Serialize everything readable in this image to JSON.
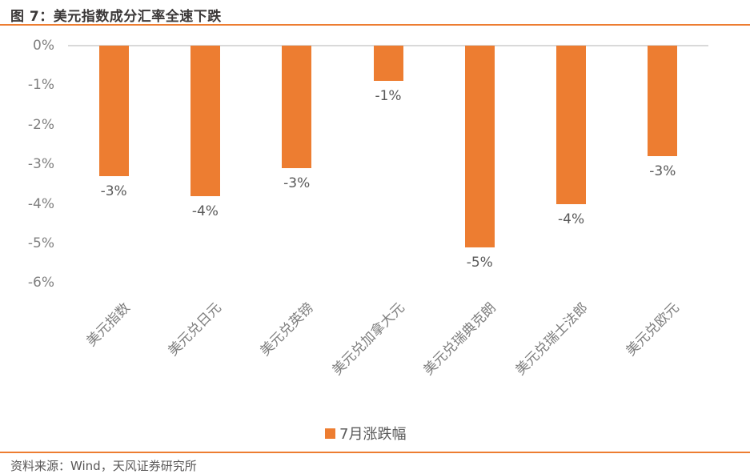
{
  "header": {
    "title": "图 7：美元指数成分汇率全速下跌"
  },
  "footer": {
    "source": "资料来源：Wind，天风证券研究所"
  },
  "colors": {
    "bar": "#ed7d31",
    "accent": "#ed7d31",
    "axis_line": "#d9d9d9",
    "tick_text": "#7f7f7f",
    "dlabel_text": "#595959",
    "title_text": "#3b3838",
    "source_text": "#595757"
  },
  "chart_data": {
    "type": "bar",
    "title": "图 7：美元指数成分汇率全速下跌",
    "categories": [
      "美元指数",
      "美元兑日元",
      "美元兑英镑",
      "美元兑加拿大元",
      "美元兑瑞典克朗",
      "美元兑瑞士法郎",
      "美元兑欧元"
    ],
    "series": [
      {
        "name": "7月涨跌幅",
        "values": [
          -3.3,
          -3.8,
          -3.1,
          -0.9,
          -5.1,
          -4.0,
          -2.8
        ],
        "data_labels": [
          "-3%",
          "-4%",
          "-3%",
          "-1%",
          "-5%",
          "-4%",
          "-3%"
        ]
      }
    ],
    "xlabel": "",
    "ylabel": "",
    "y_ticks": [
      "0%",
      "-1%",
      "-2%",
      "-3%",
      "-4%",
      "-5%",
      "-6%"
    ],
    "ylim": [
      -6,
      0
    ],
    "grid": false,
    "legend_position": "bottom",
    "bar_color": "#ed7d31"
  }
}
